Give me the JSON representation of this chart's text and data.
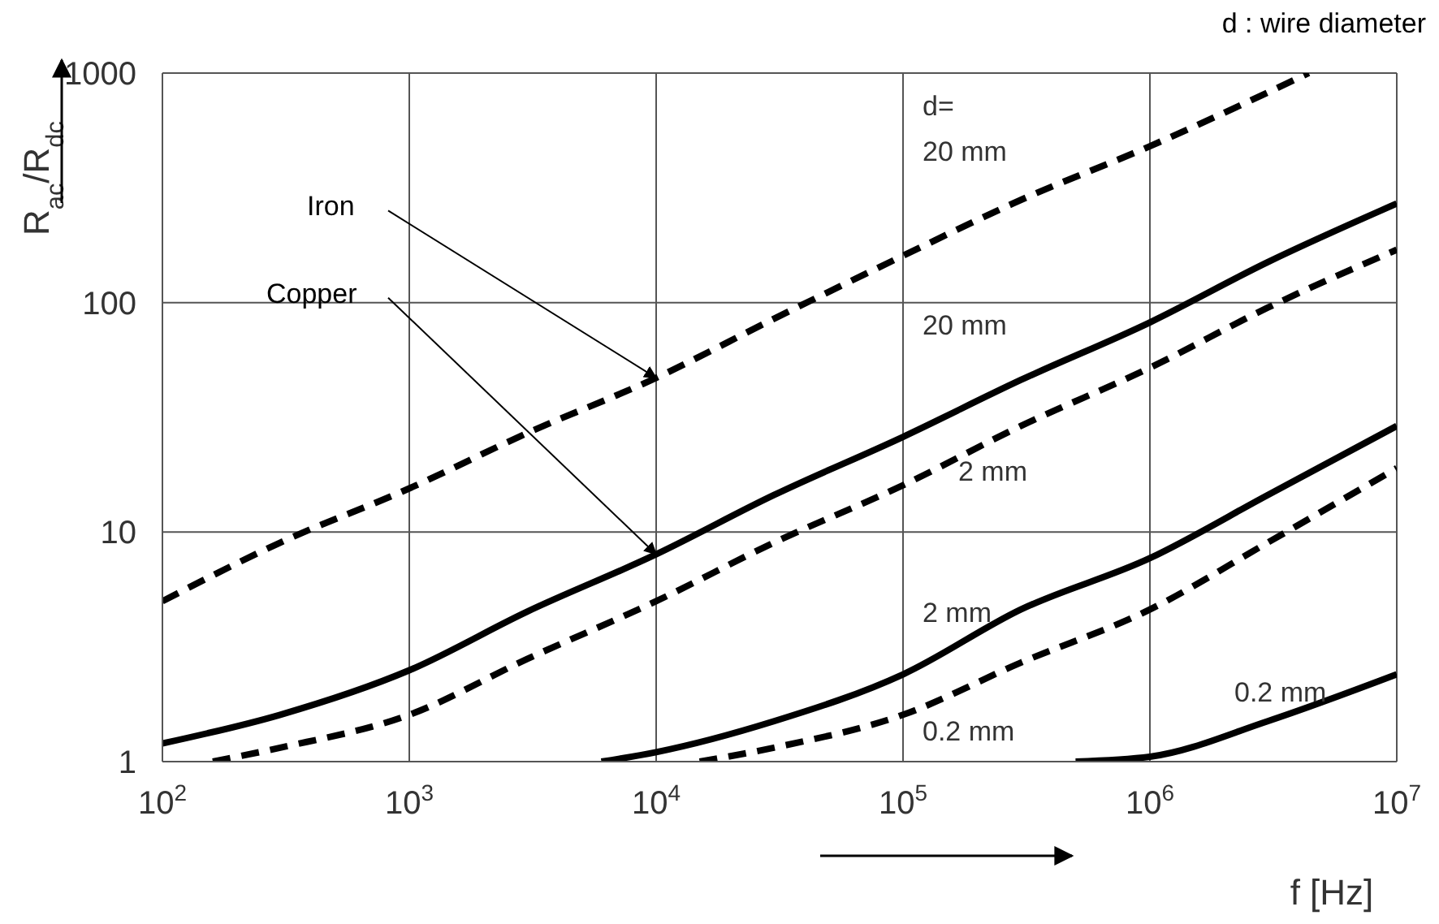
{
  "chart_data": {
    "type": "line",
    "xlabel": "f [Hz]",
    "ylabel": "R$_{ac}$/R$_{dc}$",
    "log": "xy",
    "grid": true,
    "marker": "none",
    "xlim": [
      100,
      10000000
    ],
    "ylim": [
      1,
      1000
    ],
    "xticks": [
      {
        "value": 100,
        "label": "10$^{2}$"
      },
      {
        "value": 1000,
        "label": "10$^{3}$"
      },
      {
        "value": 10000,
        "label": "10$^{4}$"
      },
      {
        "value": 100000,
        "label": "10$^{5}$"
      },
      {
        "value": 1000000,
        "label": "10$^{6}$"
      },
      {
        "value": 10000000,
        "label": "10$^{7}$"
      }
    ],
    "yticks": [
      1,
      10,
      100,
      1000
    ],
    "series": [
      {
        "name": "d=\n20 mm",
        "color": "#000000",
        "line_style": "dashed",
        "x": [
          100,
          300,
          1000,
          3000,
          10000,
          30000,
          100000,
          300000,
          1000000,
          4400000
        ],
        "values": [
          5,
          9,
          15.5,
          27,
          47,
          85,
          160,
          280,
          480,
          1000
        ]
      },
      {
        "name": "20 mm",
        "color": "#000000",
        "line_style": "solid",
        "x": [
          100,
          300,
          1000,
          3000,
          10000,
          30000,
          100000,
          300000,
          1000000,
          3000000,
          10000000
        ],
        "values": [
          1.2,
          1.6,
          2.5,
          4.5,
          8,
          14.5,
          26,
          46,
          82,
          150,
          270
        ]
      },
      {
        "name": "2 mm",
        "color": "#000000",
        "line_style": "dashed",
        "x": [
          160,
          300,
          1000,
          3000,
          10000,
          30000,
          100000,
          300000,
          1000000,
          3000000,
          10000000
        ],
        "values": [
          1,
          1.15,
          1.6,
          2.8,
          5,
          9,
          16,
          29,
          52,
          95,
          170
        ]
      },
      {
        "name": "2 mm",
        "color": "#000000",
        "line_style": "solid",
        "x": [
          6000,
          10000,
          30000,
          100000,
          300000,
          1000000,
          3000000,
          10000000
        ],
        "values": [
          1,
          1.1,
          1.5,
          2.4,
          4.6,
          7.7,
          14.5,
          29
        ]
      },
      {
        "name": "0.2 mm",
        "color": "#000000",
        "line_style": "dashed",
        "x": [
          15000,
          30000,
          100000,
          300000,
          1000000,
          3000000,
          10000000
        ],
        "values": [
          1,
          1.15,
          1.6,
          2.7,
          4.6,
          9,
          19
        ]
      },
      {
        "name": "0.2 mm",
        "color": "#000000",
        "line_style": "solid",
        "x": [
          500000,
          1000000,
          3000000,
          10000000
        ],
        "values": [
          1,
          1.05,
          1.5,
          2.4
        ]
      }
    ],
    "annotations": [
      "d : wire diameter",
      {
        "text": "Iron",
        "x": 10000,
        "y": 47
      },
      {
        "text": "Copper",
        "x": 10000,
        "y": 8
      }
    ]
  }
}
